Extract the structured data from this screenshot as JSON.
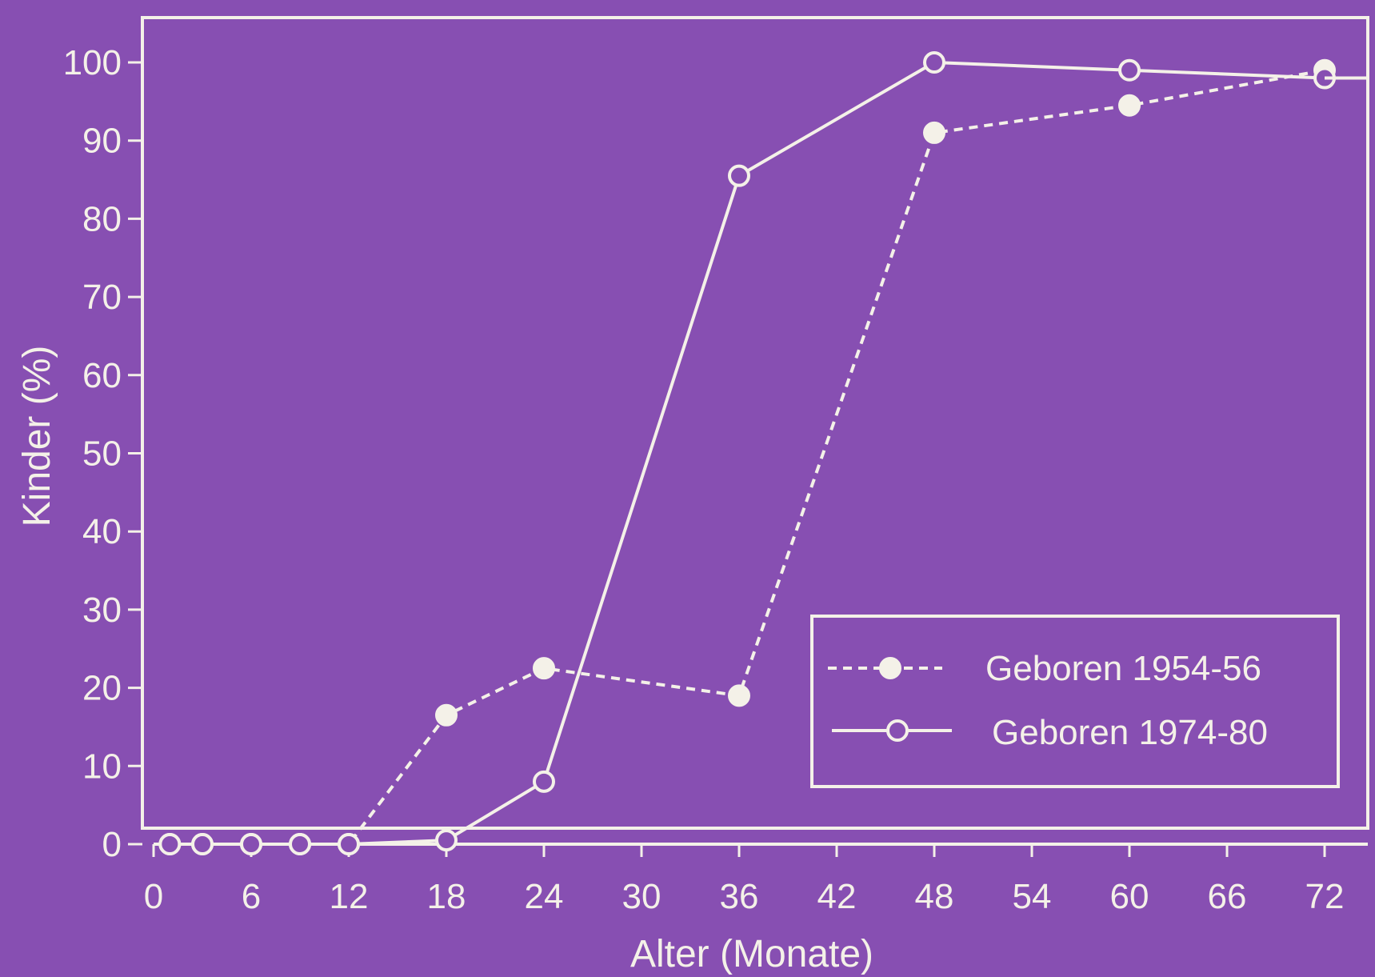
{
  "chart_data": {
    "type": "line",
    "xlabel": "Alter (Monate)",
    "ylabel": "Kinder (%)",
    "xlim": [
      0,
      72
    ],
    "ylim": [
      0,
      100
    ],
    "x_ticks": [
      0,
      6,
      12,
      18,
      24,
      30,
      36,
      42,
      48,
      54,
      60,
      66,
      72
    ],
    "y_ticks": [
      0,
      10,
      20,
      30,
      40,
      50,
      60,
      70,
      80,
      90,
      100
    ],
    "grid": false,
    "legend_position": "bottom-right",
    "series": [
      {
        "name": "Geboren 1954-56",
        "line_style": "dashed",
        "marker": "filled-circle",
        "color": "#f4f1e8",
        "points": [
          {
            "x": 1,
            "y": 0
          },
          {
            "x": 3,
            "y": 0
          },
          {
            "x": 6,
            "y": 0
          },
          {
            "x": 9,
            "y": 0
          },
          {
            "x": 12,
            "y": 0
          },
          {
            "x": 18,
            "y": 16.5
          },
          {
            "x": 24,
            "y": 22.5
          },
          {
            "x": 36,
            "y": 19
          },
          {
            "x": 48,
            "y": 91
          },
          {
            "x": 60,
            "y": 94.5
          },
          {
            "x": 72,
            "y": 99
          }
        ]
      },
      {
        "name": "Geboren 1974-80",
        "line_style": "solid",
        "marker": "open-circle",
        "color": "#f4f1e8",
        "points": [
          {
            "x": 1,
            "y": 0
          },
          {
            "x": 3,
            "y": 0
          },
          {
            "x": 6,
            "y": 0
          },
          {
            "x": 9,
            "y": 0
          },
          {
            "x": 12,
            "y": 0
          },
          {
            "x": 18,
            "y": 0.5
          },
          {
            "x": 24,
            "y": 8
          },
          {
            "x": 36,
            "y": 85.5
          },
          {
            "x": 48,
            "y": 100
          },
          {
            "x": 60,
            "y": 99
          },
          {
            "x": 72,
            "y": 98
          }
        ]
      }
    ]
  }
}
